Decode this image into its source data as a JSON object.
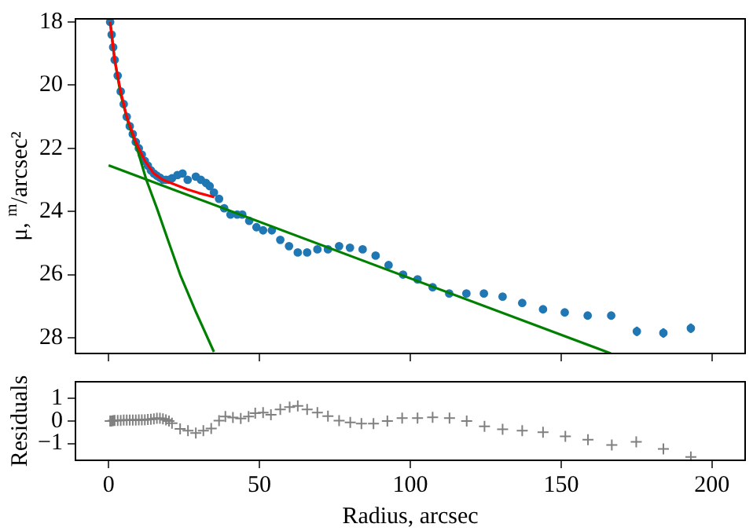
{
  "chart_data": [
    {
      "type": "scatter",
      "ylabel": "μ, $^{m}$/arcsec²",
      "xlim": [
        -11,
        211
      ],
      "xticks": [
        0,
        50,
        100,
        150,
        200
      ],
      "ylim": [
        28.5,
        17.9
      ],
      "yticks": [
        18,
        20,
        22,
        24,
        26,
        28
      ],
      "tick_labels": "y",
      "grid": false,
      "series": [
        {
          "type": "scatter",
          "color": "#1f77b4",
          "marker": "circle",
          "x": [
            0.5,
            1,
            1.5,
            2,
            3,
            4,
            5,
            6,
            7,
            8,
            9,
            10,
            11,
            12,
            13,
            14,
            15,
            16,
            17,
            18,
            19,
            20,
            21,
            22.8,
            24.5,
            26.2,
            28.9,
            30.6,
            32.3,
            33.5,
            34.9,
            36.6,
            38.3,
            40.4,
            42.6,
            44.3,
            46.6,
            49,
            51.2,
            54.1,
            56.9,
            59.8,
            62.7,
            65.8,
            69.2,
            72.7,
            76.4,
            80,
            84.2,
            88.5,
            92.8,
            97.6,
            102.4,
            107.4,
            112.9,
            118.6,
            124.4,
            130.6,
            137.1,
            144,
            151.2,
            158.8,
            166.6,
            175.1,
            183.9,
            193
          ],
          "values": [
            18.0,
            18.4,
            18.8,
            19.2,
            19.7,
            20.2,
            20.6,
            21.0,
            21.3,
            21.55,
            21.8,
            22.0,
            22.2,
            22.4,
            22.55,
            22.7,
            22.8,
            22.87,
            22.93,
            23.0,
            23.0,
            23.0,
            22.95,
            22.85,
            22.8,
            23.0,
            22.9,
            23.0,
            23.1,
            23.2,
            23.4,
            23.6,
            23.9,
            24.1,
            24.1,
            24.1,
            24.3,
            24.5,
            24.6,
            24.6,
            24.9,
            25.1,
            25.3,
            25.3,
            25.2,
            25.2,
            25.1,
            25.15,
            25.2,
            25.4,
            25.7,
            26.0,
            26.15,
            26.4,
            26.6,
            26.6,
            26.6,
            26.7,
            26.9,
            27.1,
            27.2,
            27.3,
            27.3,
            27.8,
            27.85,
            27.7
          ],
          "errors": [
            null,
            null,
            null,
            null,
            null,
            null,
            null,
            null,
            null,
            null,
            null,
            null,
            null,
            null,
            null,
            null,
            null,
            null,
            null,
            null,
            null,
            null,
            null,
            null,
            null,
            null,
            null,
            null,
            null,
            null,
            null,
            null,
            null,
            null,
            null,
            null,
            null,
            null,
            null,
            null,
            null,
            null,
            null,
            null,
            null,
            null,
            null,
            null,
            null,
            null,
            null,
            null,
            null,
            null,
            null,
            null,
            null,
            null,
            null,
            null,
            null,
            null,
            null,
            0.15,
            0.15,
            0.15
          ]
        },
        {
          "type": "line",
          "color": "#ff0000",
          "marker": "none",
          "x": [
            0.5,
            2,
            4,
            6,
            9,
            12,
            15,
            18,
            22,
            26,
            30,
            35
          ],
          "values": [
            18.0,
            19.2,
            20.2,
            21.0,
            21.8,
            22.4,
            22.8,
            23.0,
            23.15,
            23.3,
            23.42,
            23.55
          ]
        },
        {
          "type": "line",
          "color": "#008000",
          "marker": "none",
          "x": [
            0.5,
            2,
            4,
            6.5,
            9.4,
            12.5,
            16,
            20,
            23.7,
            29,
            34.9
          ],
          "values": [
            18.0,
            19.2,
            20.3,
            21.2,
            22.0,
            23.0,
            23.9,
            25.0,
            26.0,
            27.2,
            28.45
          ]
        },
        {
          "type": "line",
          "color": "#008000",
          "marker": "none",
          "x": [
            0,
            166.5
          ],
          "values": [
            22.54,
            28.5
          ]
        }
      ]
    },
    {
      "type": "scatter",
      "xlabel": "Radius, arcsec",
      "ylabel": "Residuals",
      "xlim": [
        -11,
        211
      ],
      "xticks": [
        0,
        50,
        100,
        150,
        200
      ],
      "ylim": [
        -1.75,
        1.75
      ],
      "yticks": [
        {
          "value": -1,
          "label": "−1"
        },
        0,
        1
      ],
      "grid": false,
      "series": [
        {
          "type": "scatter",
          "color": "#808080",
          "marker": "cross",
          "x": [
            0.5,
            1,
            1.5,
            2,
            3,
            4,
            5,
            6,
            7,
            8,
            9,
            10,
            11,
            12,
            13,
            14,
            15,
            16,
            17,
            18,
            19,
            20,
            21,
            23.7,
            26.3,
            28.9,
            31.4,
            34,
            36.6,
            38.7,
            41.2,
            43.8,
            46.4,
            48.6,
            51.2,
            53.8,
            56.9,
            60,
            62.7,
            65.8,
            69.2,
            72.7,
            76.4,
            80.1,
            83.8,
            87.8,
            92.4,
            97.3,
            102.4,
            107.4,
            113,
            118.7,
            124.6,
            130.6,
            137.1,
            144,
            151.4,
            158.9,
            166.8,
            174.9,
            183.9,
            193
          ],
          "values": [
            0,
            0,
            0.02,
            0.03,
            0.03,
            0.03,
            0.04,
            0.04,
            0.04,
            0.04,
            0.04,
            0.05,
            0.05,
            0.05,
            0.07,
            0.08,
            0.1,
            0.12,
            0.12,
            0.1,
            0.05,
            0,
            -0.1,
            -0.35,
            -0.43,
            -0.53,
            -0.43,
            -0.33,
            0.02,
            0.2,
            0.16,
            0.11,
            0.2,
            0.35,
            0.38,
            0.28,
            0.52,
            0.62,
            0.67,
            0.52,
            0.38,
            0.22,
            0.02,
            -0.06,
            -0.11,
            -0.11,
            0,
            0.13,
            0.13,
            0.17,
            0.13,
            0,
            -0.24,
            -0.37,
            -0.43,
            -0.5,
            -0.68,
            -0.83,
            -1.07,
            -0.93,
            -1.24,
            -1.6
          ]
        }
      ]
    }
  ]
}
